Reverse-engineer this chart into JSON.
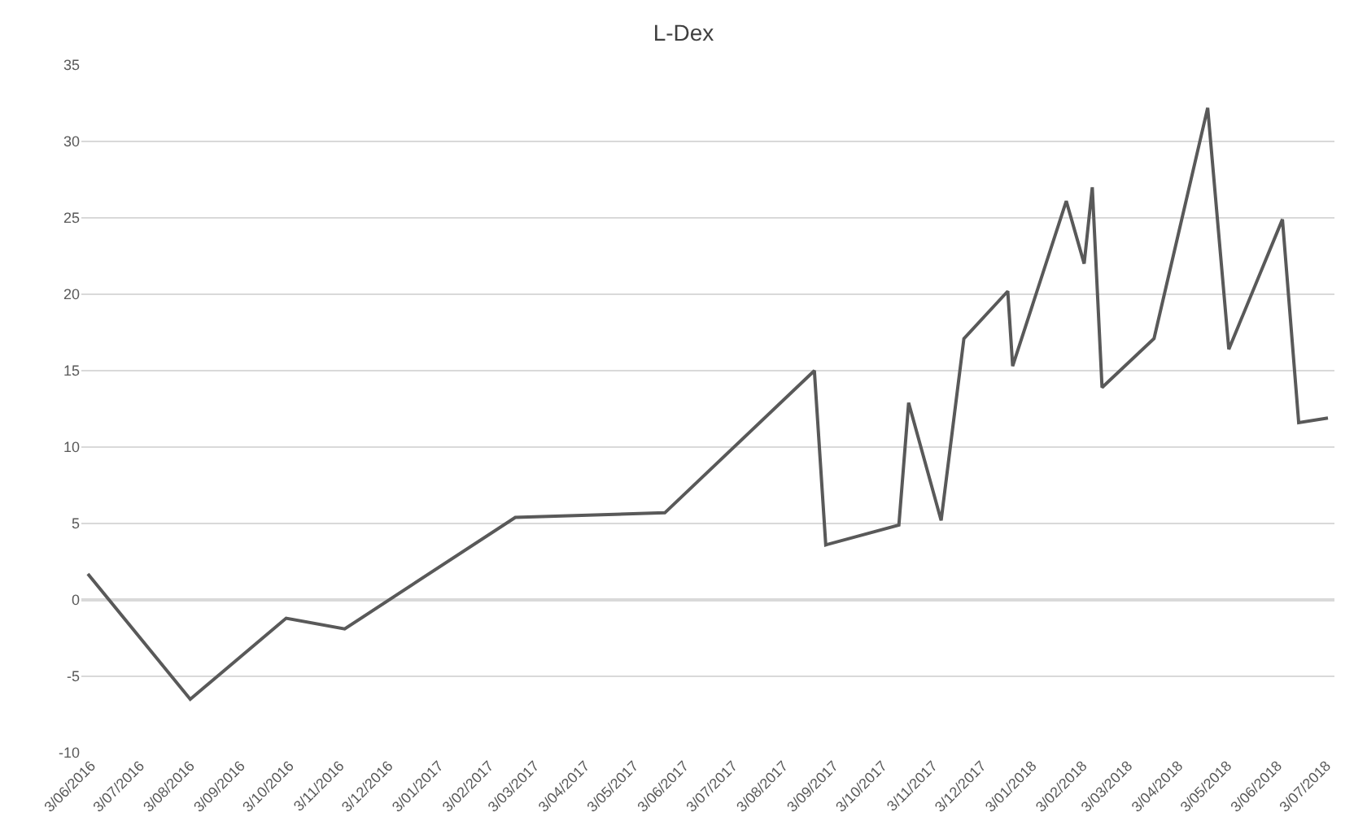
{
  "chart_data": {
    "type": "line",
    "title": "L-Dex",
    "x": [
      "2016-06-01",
      "2016-08-03",
      "2016-10-01",
      "2016-11-06",
      "2017-02-19",
      "2017-05-22",
      "2017-08-22",
      "2017-08-29",
      "2017-10-13",
      "2017-10-19",
      "2017-11-08",
      "2017-11-22",
      "2017-12-19",
      "2017-12-22",
      "2018-01-24",
      "2018-02-04",
      "2018-02-09",
      "2018-02-15",
      "2018-03-19",
      "2018-04-21",
      "2018-05-04",
      "2018-06-06",
      "2018-06-16",
      "2018-07-04"
    ],
    "series": [
      {
        "color": "#595959",
        "values": [
          1.7,
          -6.5,
          -1.2,
          -1.9,
          5.4,
          5.7,
          15.0,
          3.6,
          4.9,
          12.9,
          5.2,
          17.1,
          20.2,
          15.3,
          26.1,
          22.0,
          27.0,
          13.9,
          17.1,
          32.2,
          16.4,
          24.9,
          11.6,
          11.9
        ]
      }
    ],
    "ylim": [
      -10,
      35
    ],
    "yticks": [
      -10,
      -5,
      0,
      5,
      10,
      15,
      20,
      25,
      30,
      35
    ],
    "xlim": [
      "2016-05-28",
      "2018-07-08"
    ],
    "xticks": [
      {
        "value": "2016-06-03",
        "label": "3/06/2016"
      },
      {
        "value": "2016-07-03",
        "label": "3/07/2016"
      },
      {
        "value": "2016-08-03",
        "label": "3/08/2016"
      },
      {
        "value": "2016-09-03",
        "label": "3/09/2016"
      },
      {
        "value": "2016-10-03",
        "label": "3/10/2016"
      },
      {
        "value": "2016-11-03",
        "label": "3/11/2016"
      },
      {
        "value": "2016-12-03",
        "label": "3/12/2016"
      },
      {
        "value": "2017-01-03",
        "label": "3/01/2017"
      },
      {
        "value": "2017-02-03",
        "label": "3/02/2017"
      },
      {
        "value": "2017-03-03",
        "label": "3/03/2017"
      },
      {
        "value": "2017-04-03",
        "label": "3/04/2017"
      },
      {
        "value": "2017-05-03",
        "label": "3/05/2017"
      },
      {
        "value": "2017-06-03",
        "label": "3/06/2017"
      },
      {
        "value": "2017-07-03",
        "label": "3/07/2017"
      },
      {
        "value": "2017-08-03",
        "label": "3/08/2017"
      },
      {
        "value": "2017-09-03",
        "label": "3/09/2017"
      },
      {
        "value": "2017-10-03",
        "label": "3/10/2017"
      },
      {
        "value": "2017-11-03",
        "label": "3/11/2017"
      },
      {
        "value": "2017-12-03",
        "label": "3/12/2017"
      },
      {
        "value": "2018-01-03",
        "label": "3/01/2018"
      },
      {
        "value": "2018-02-03",
        "label": "3/02/2018"
      },
      {
        "value": "2018-03-03",
        "label": "3/03/2018"
      },
      {
        "value": "2018-04-03",
        "label": "3/04/2018"
      },
      {
        "value": "2018-05-03",
        "label": "3/05/2018"
      },
      {
        "value": "2018-06-03",
        "label": "3/06/2018"
      },
      {
        "value": "2018-07-03",
        "label": "3/07/2018"
      }
    ],
    "grid": "y",
    "marker": "none",
    "line_style": "solid"
  }
}
